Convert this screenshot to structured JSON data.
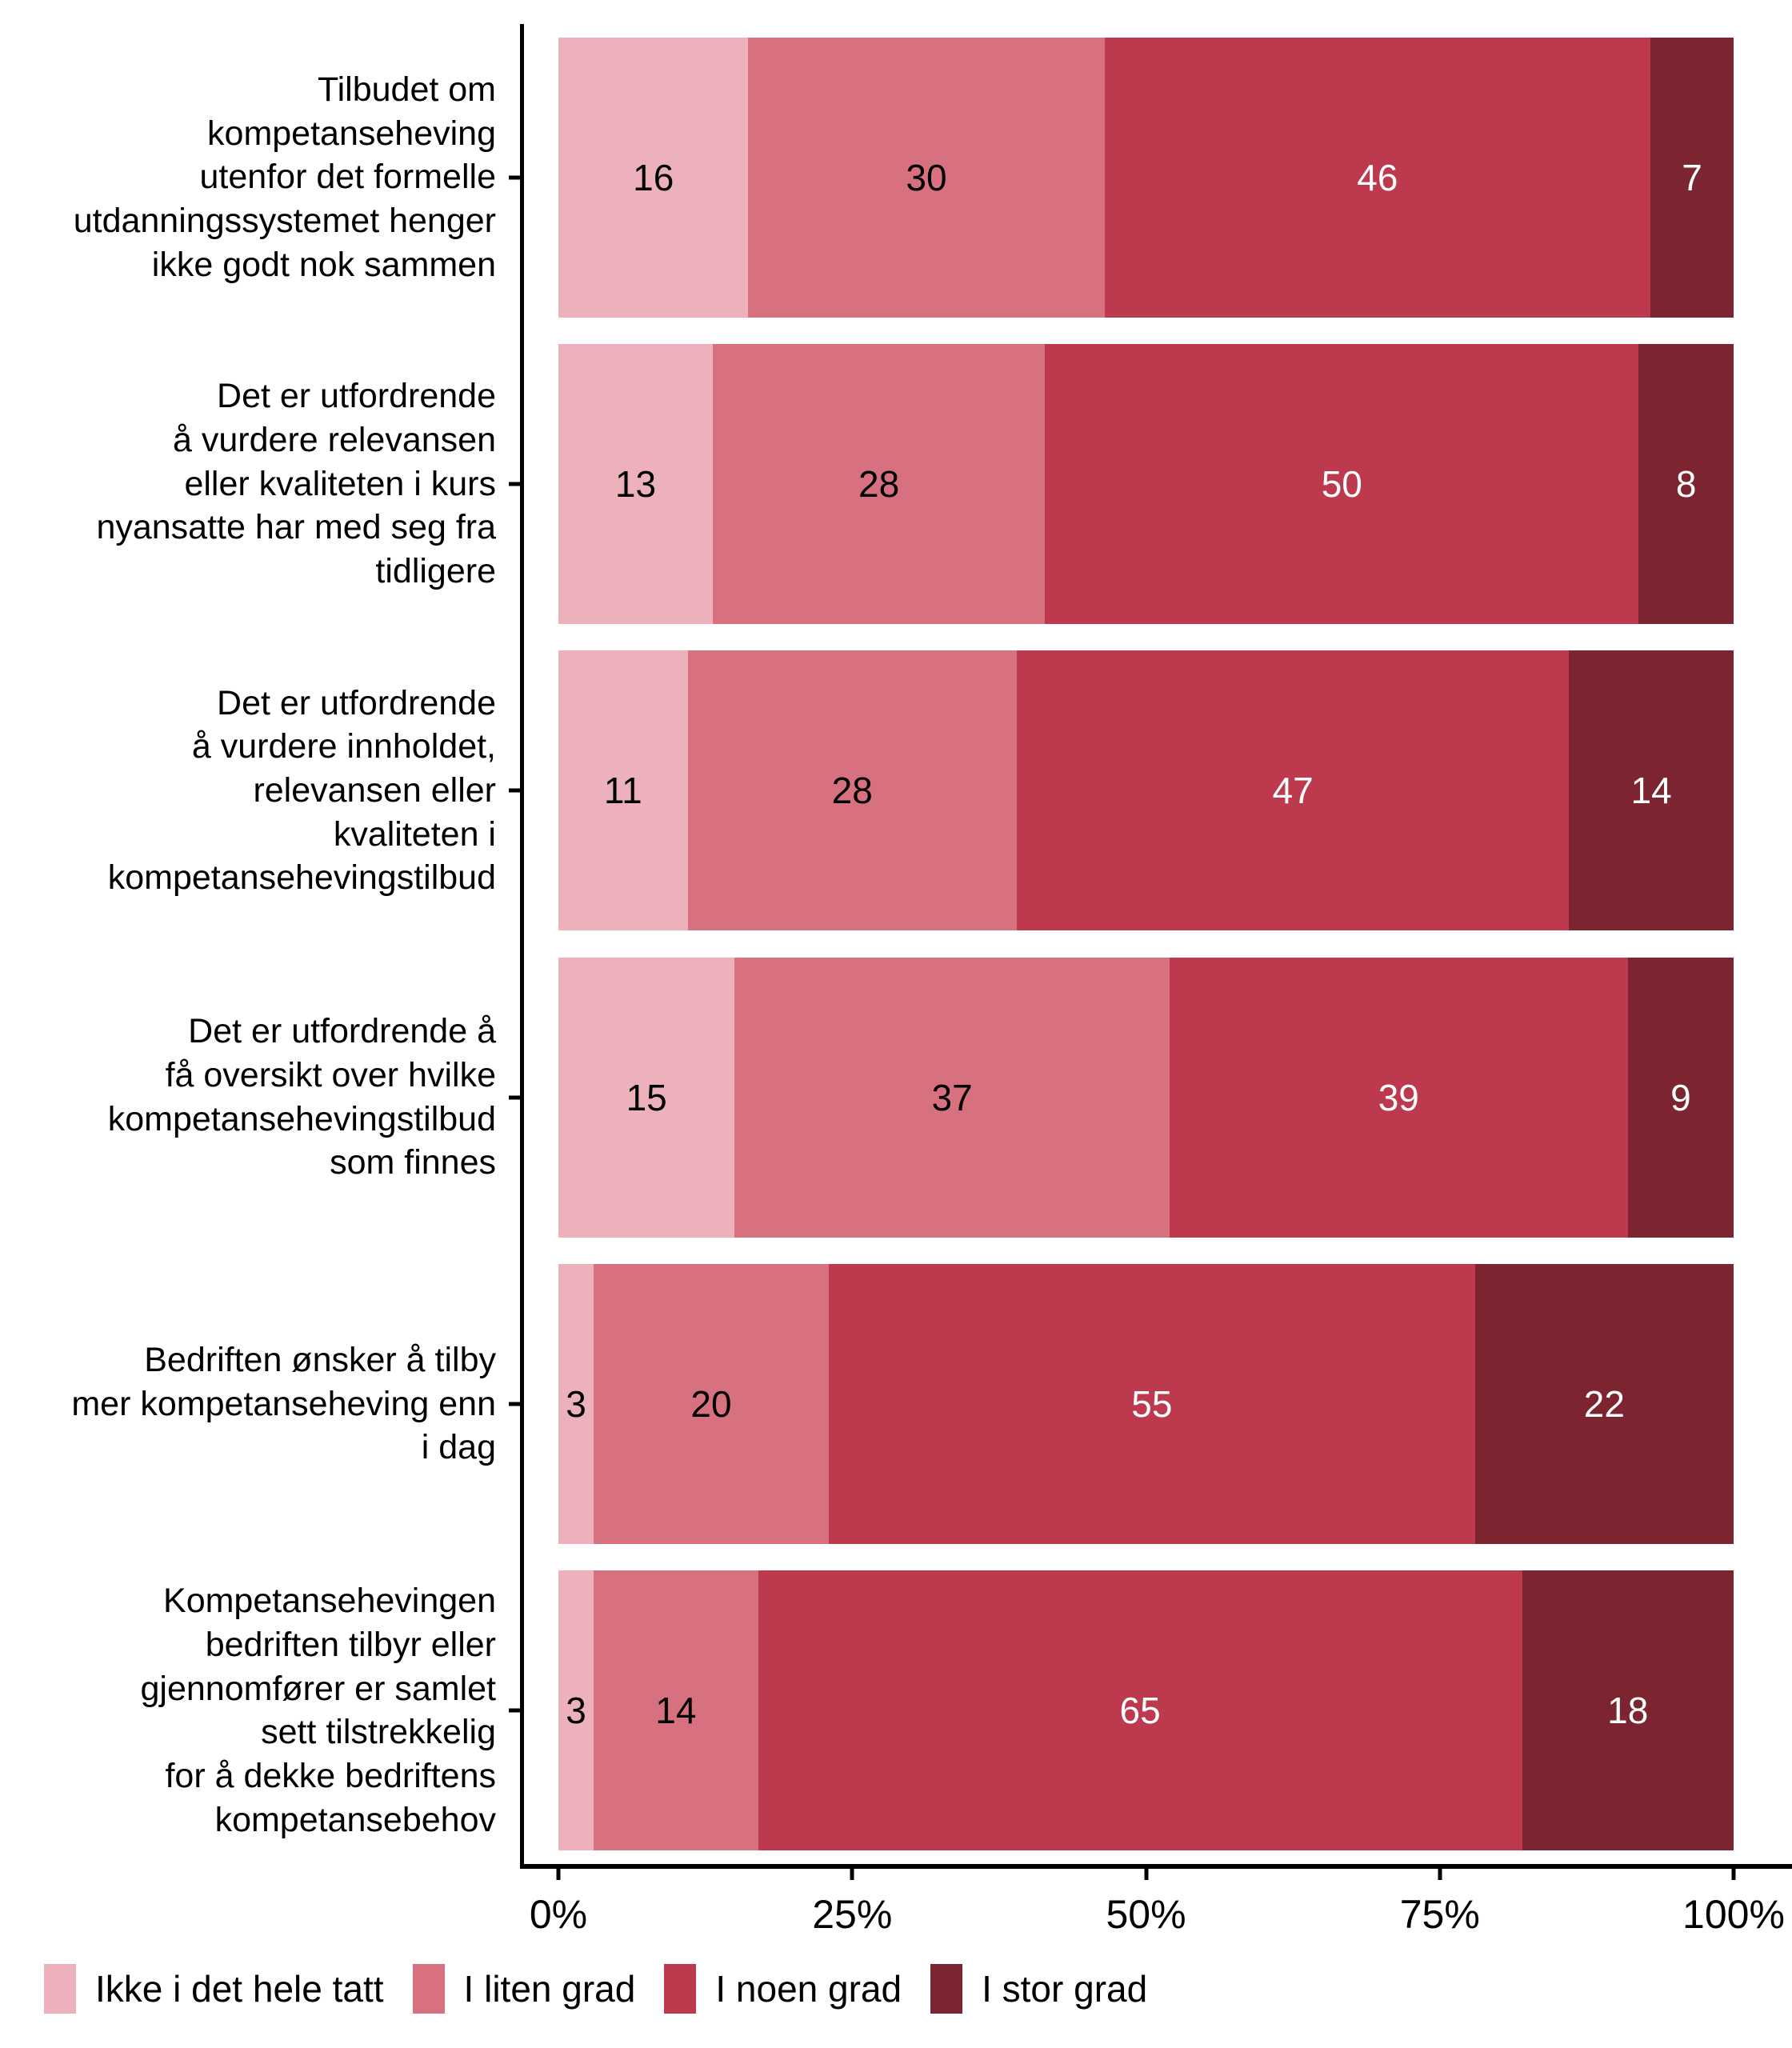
{
  "chart_data": {
    "type": "bar",
    "orientation": "horizontal",
    "stacked": true,
    "normalized": true,
    "unit": "percent",
    "title": "",
    "xlabel": "",
    "ylabel": "",
    "xlim": [
      0,
      100
    ],
    "grid": false,
    "legend_position": "bottom-left",
    "categories": [
      "Tilbudet om\nkompetanseheving\nutenfor det formelle\nutdanningssystemet henger\nikke godt nok sammen",
      "Det er utfordrende\nå vurdere relevansen\neller kvaliteten i kurs\nnyansatte har med seg fra\ntidligere",
      "Det er utfordrende\nå vurdere innholdet,\nrelevansen eller\nkvaliteten i\nkompetansehevingstilbud",
      "Det er utfordrende å\nfå oversikt over hvilke\nkompetansehevingstilbud\nsom finnes",
      "Bedriften ønsker å tilby\nmer kompetanseheving enn\ni dag",
      "Kompetansehevingen\nbedriften tilbyr eller\ngjennomfører er samlet\nsett tilstrekkelig\nfor å dekke bedriftens\nkompetansebehov"
    ],
    "series": [
      {
        "name": "Ikke i det hele tatt",
        "color": "#ecb1ba",
        "label_color": "#000000",
        "values": [
          16,
          13,
          11,
          15,
          3,
          3
        ]
      },
      {
        "name": "I liten grad",
        "color": "#d7707f",
        "label_color": "#000000",
        "values": [
          30,
          28,
          28,
          37,
          20,
          14
        ]
      },
      {
        "name": "I noen grad",
        "color": "#bd3a4e",
        "label_color": "#ffffff",
        "values": [
          46,
          50,
          47,
          39,
          55,
          65
        ]
      },
      {
        "name": "I stor grad",
        "color": "#7d2431",
        "label_color": "#ffffff",
        "values": [
          7,
          8,
          14,
          9,
          22,
          18
        ]
      }
    ],
    "x_ticks": [
      "0%",
      "25%",
      "50%",
      "75%",
      "100%"
    ]
  },
  "axis_colors": {
    "line": "#000000",
    "text": "#000000"
  }
}
